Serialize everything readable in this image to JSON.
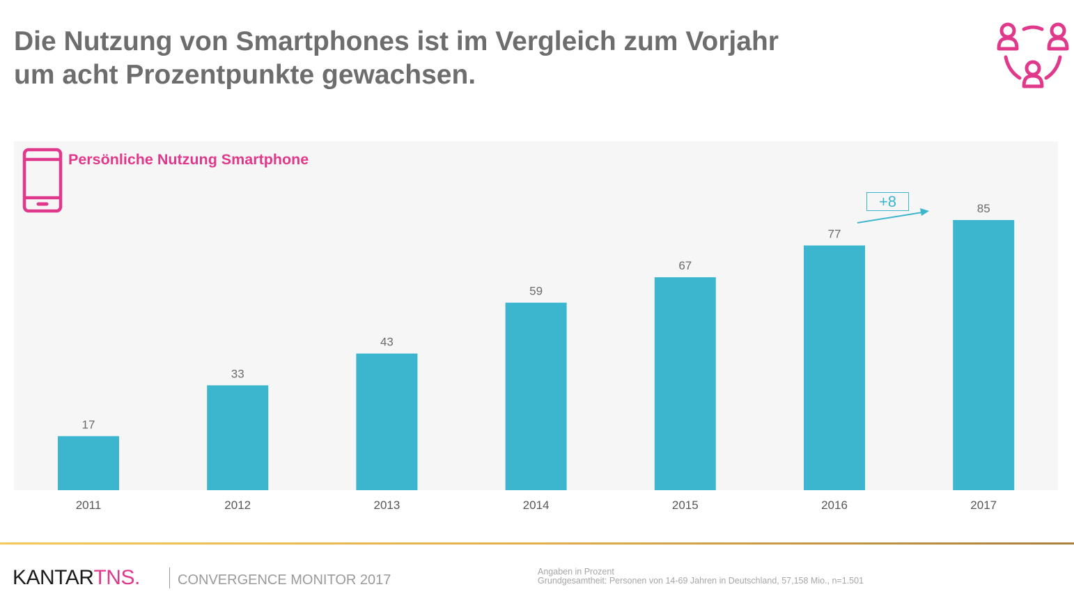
{
  "header": {
    "title_lines": [
      "Die Nutzung von Smartphones ist im Vergleich zum Vorjahr",
      "um acht Prozentpunkte gewachsen."
    ],
    "icon": "people-network-icon"
  },
  "colors": {
    "accent_pink": "#e0388a",
    "bar_teal": "#3bb6ce",
    "title_gray": "#6d6d6d",
    "panel_bg": "#f6f6f7",
    "gold_line": "#e2b04a"
  },
  "chart_data": {
    "type": "bar",
    "title": "Persönliche Nutzung Smartphone",
    "title_icon": "smartphone-icon",
    "categories": [
      "2011",
      "2012",
      "2013",
      "2014",
      "2015",
      "2016",
      "2017"
    ],
    "values": [
      17,
      33,
      43,
      59,
      67,
      77,
      85
    ],
    "xlabel": "",
    "ylabel": "",
    "ylim": [
      0,
      85
    ],
    "grid": false,
    "data_labels": true,
    "annotation": {
      "text": "+8",
      "from": "2016",
      "to": "2017",
      "type": "arrow-with-box"
    }
  },
  "footer": {
    "brand_primary": "KANTAR",
    "brand_secondary": "TNS.",
    "product": "CONVERGENCE MONITOR 2017",
    "notes": [
      "Angaben in Prozent",
      "Grundgesamtheit: Personen von 14-69 Jahren in Deutschland, 57,158 Mio., n=1.501"
    ]
  }
}
